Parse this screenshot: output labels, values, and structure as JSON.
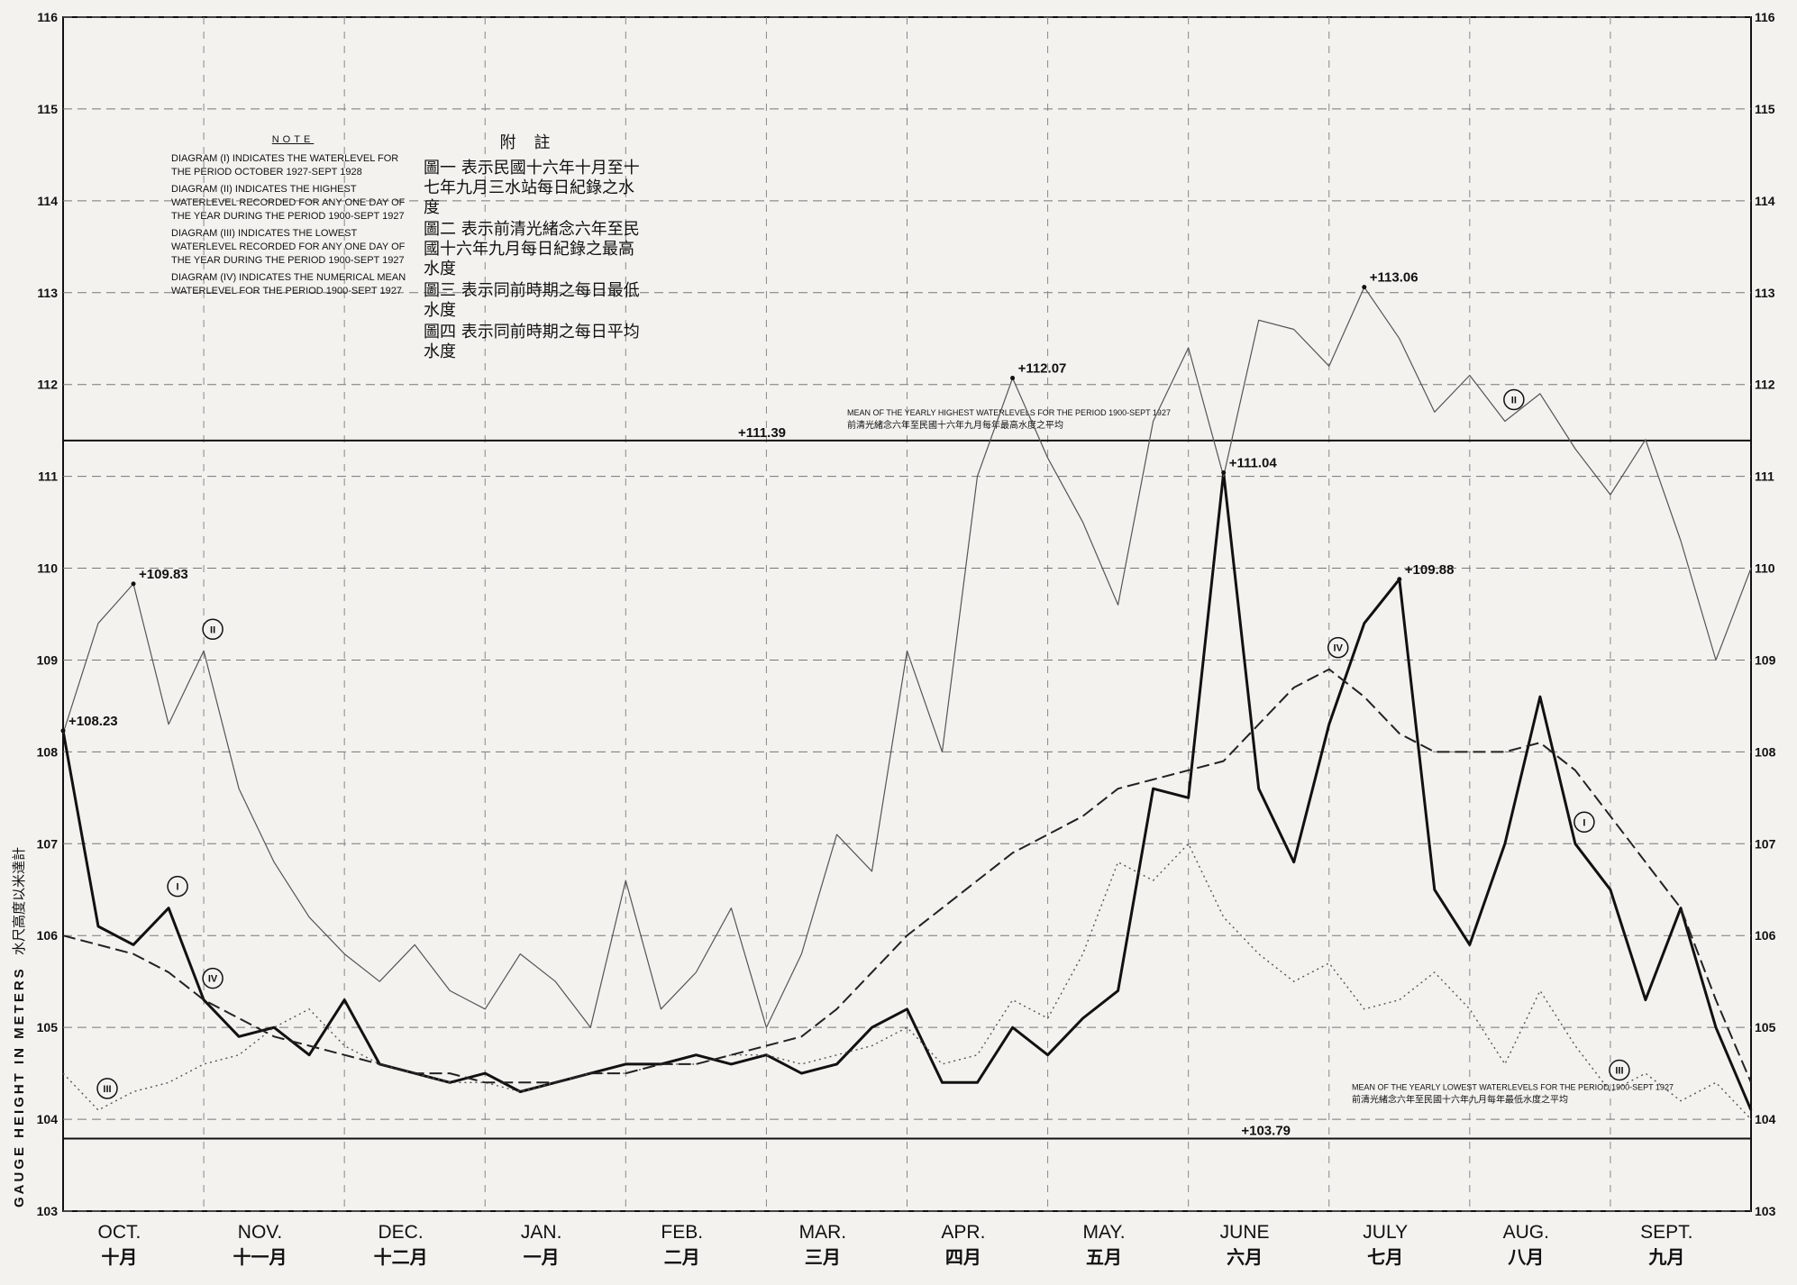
{
  "chart_data": {
    "type": "line",
    "y_label": "GAUGE HEIGHT IN METERS",
    "y_label_zh": "水尺高度以米達計",
    "categories": [
      "OCT.",
      "NOV.",
      "DEC.",
      "JAN.",
      "FEB.",
      "MAR.",
      "APR.",
      "MAY.",
      "JUNE",
      "JULY",
      "AUG.",
      "SEPT."
    ],
    "categories_zh": [
      "十月",
      "十一月",
      "十二月",
      "一月",
      "二月",
      "三月",
      "四月",
      "五月",
      "六月",
      "七月",
      "八月",
      "九月"
    ],
    "xlim": [
      0,
      12
    ],
    "ylim": [
      103,
      116
    ],
    "yticks": [
      103,
      104,
      105,
      106,
      107,
      108,
      109,
      110,
      111,
      112,
      113,
      114,
      115,
      116
    ],
    "grid": true,
    "x": [
      0,
      0.25,
      0.5,
      0.75,
      1,
      1.25,
      1.5,
      1.75,
      2,
      2.25,
      2.5,
      2.75,
      3,
      3.25,
      3.5,
      3.75,
      4,
      4.25,
      4.5,
      4.75,
      5,
      5.25,
      5.5,
      5.75,
      6,
      6.25,
      6.5,
      6.75,
      7,
      7.25,
      7.5,
      7.75,
      8,
      8.25,
      8.5,
      8.75,
      9,
      9.25,
      9.5,
      9.75,
      10,
      10.25,
      10.5,
      10.75,
      11,
      11.25,
      11.5,
      11.75,
      12
    ],
    "series": [
      {
        "name": "I",
        "color": "#111111",
        "style": "solid",
        "width": 3,
        "values": [
          108.23,
          106.1,
          105.9,
          106.3,
          105.3,
          104.9,
          105.0,
          104.7,
          105.3,
          104.6,
          104.5,
          104.4,
          104.5,
          104.3,
          104.4,
          104.5,
          104.6,
          104.6,
          104.7,
          104.6,
          104.7,
          104.5,
          104.6,
          105.0,
          105.2,
          104.4,
          104.4,
          105.0,
          104.7,
          105.1,
          105.4,
          107.6,
          107.5,
          111.04,
          107.6,
          106.8,
          108.3,
          109.4,
          109.88,
          106.5,
          105.9,
          107.0,
          108.6,
          107.0,
          106.5,
          105.3,
          106.3,
          105.0,
          104.1
        ]
      },
      {
        "name": "II",
        "color": "#555555",
        "style": "solid",
        "width": 1.2,
        "values": [
          108.2,
          109.4,
          109.83,
          108.3,
          109.1,
          107.6,
          106.8,
          106.2,
          105.8,
          105.5,
          105.9,
          105.4,
          105.2,
          105.8,
          105.5,
          105.0,
          106.6,
          105.2,
          105.6,
          106.3,
          105.0,
          105.8,
          107.1,
          106.7,
          109.1,
          108.0,
          111.0,
          112.07,
          111.2,
          110.5,
          109.6,
          111.6,
          112.4,
          111.0,
          112.7,
          112.6,
          112.2,
          113.06,
          112.5,
          111.7,
          112.1,
          111.6,
          111.9,
          111.3,
          110.8,
          111.4,
          110.3,
          109.0,
          110.0
        ]
      },
      {
        "name": "III",
        "color": "#555555",
        "style": "dotted",
        "width": 1.4,
        "values": [
          104.5,
          104.1,
          104.3,
          104.4,
          104.6,
          104.7,
          105.0,
          105.2,
          104.8,
          104.6,
          104.5,
          104.4,
          104.4,
          104.3,
          104.4,
          104.5,
          104.5,
          104.6,
          104.6,
          104.7,
          104.7,
          104.6,
          104.7,
          104.8,
          105.0,
          104.6,
          104.7,
          105.3,
          105.1,
          105.8,
          106.8,
          106.6,
          107.0,
          106.2,
          105.8,
          105.5,
          105.7,
          105.2,
          105.3,
          105.6,
          105.2,
          104.6,
          105.4,
          104.8,
          104.3,
          104.5,
          104.2,
          104.4,
          104.0
        ]
      },
      {
        "name": "IV",
        "color": "#222222",
        "style": "dashed",
        "width": 2,
        "values": [
          106.0,
          105.9,
          105.8,
          105.6,
          105.3,
          105.1,
          104.9,
          104.8,
          104.7,
          104.6,
          104.5,
          104.5,
          104.4,
          104.4,
          104.4,
          104.5,
          104.5,
          104.6,
          104.6,
          104.7,
          104.8,
          104.9,
          105.2,
          105.6,
          106.0,
          106.3,
          106.6,
          106.9,
          107.1,
          107.3,
          107.6,
          107.7,
          107.8,
          107.9,
          108.3,
          108.7,
          108.9,
          108.6,
          108.2,
          108.0,
          108.0,
          108.0,
          108.1,
          107.8,
          107.3,
          106.8,
          106.3,
          105.3,
          104.4
        ]
      }
    ],
    "annotations": [
      {
        "label": "+108.23",
        "x": 0,
        "y": 108.23
      },
      {
        "label": "+109.83",
        "x": 0.5,
        "y": 109.83
      },
      {
        "label": "+112.07",
        "x": 6.75,
        "y": 112.07
      },
      {
        "label": "+113.06",
        "x": 9.25,
        "y": 113.06
      },
      {
        "label": "+111.04",
        "x": 8.25,
        "y": 111.04
      },
      {
        "label": "+109.88",
        "x": 9.5,
        "y": 109.88
      }
    ],
    "ref_lines": [
      {
        "value": 111.39,
        "label": "+111.39",
        "text": "MEAN OF THE YEARLY HIGHEST WATERLEVELS FOR THE PERIOD 1900-SEPT 1927",
        "text_zh": "前清光緒念六年至民國十六年九月每年最高水度之平均"
      },
      {
        "value": 103.79,
        "label": "+103.79",
        "text": "MEAN OF THE YEARLY LOWEST WATERLEVELS FOR THE PERIOD 1900-SEPT 1927",
        "text_zh": "前清光緒念六年至民國十六年九月每年最低水度之平均"
      }
    ],
    "note": {
      "title": "NOTE",
      "items": [
        "DIAGRAM (I) INDICATES THE WATERLEVEL FOR THE PERIOD OCTOBER 1927-SEPT 1928",
        "DIAGRAM (II) INDICATES THE HIGHEST WATERLEVEL RECORDED FOR ANY ONE DAY OF THE YEAR DURING THE PERIOD 1900-SEPT 1927",
        "DIAGRAM (III) INDICATES THE LOWEST WATERLEVEL RECORDED FOR ANY ONE DAY OF THE YEAR DURING THE PERIOD 1900-SEPT 1927",
        "DIAGRAM (IV) INDICATES THE NUMERICAL MEAN WATERLEVEL FOR THE PERIOD 1900-SEPT 1927"
      ]
    },
    "note_zh": {
      "title": "附註",
      "items": [
        "圖一 表示民國十六年十月至十七年九月三水站每日紀錄之水度",
        "圖二 表示前清光緒念六年至民國十六年九月每日紀錄之最高水度",
        "圖三 表示同前時期之每日最低水度",
        "圖四 表示同前時期之每日平均水度"
      ]
    }
  }
}
